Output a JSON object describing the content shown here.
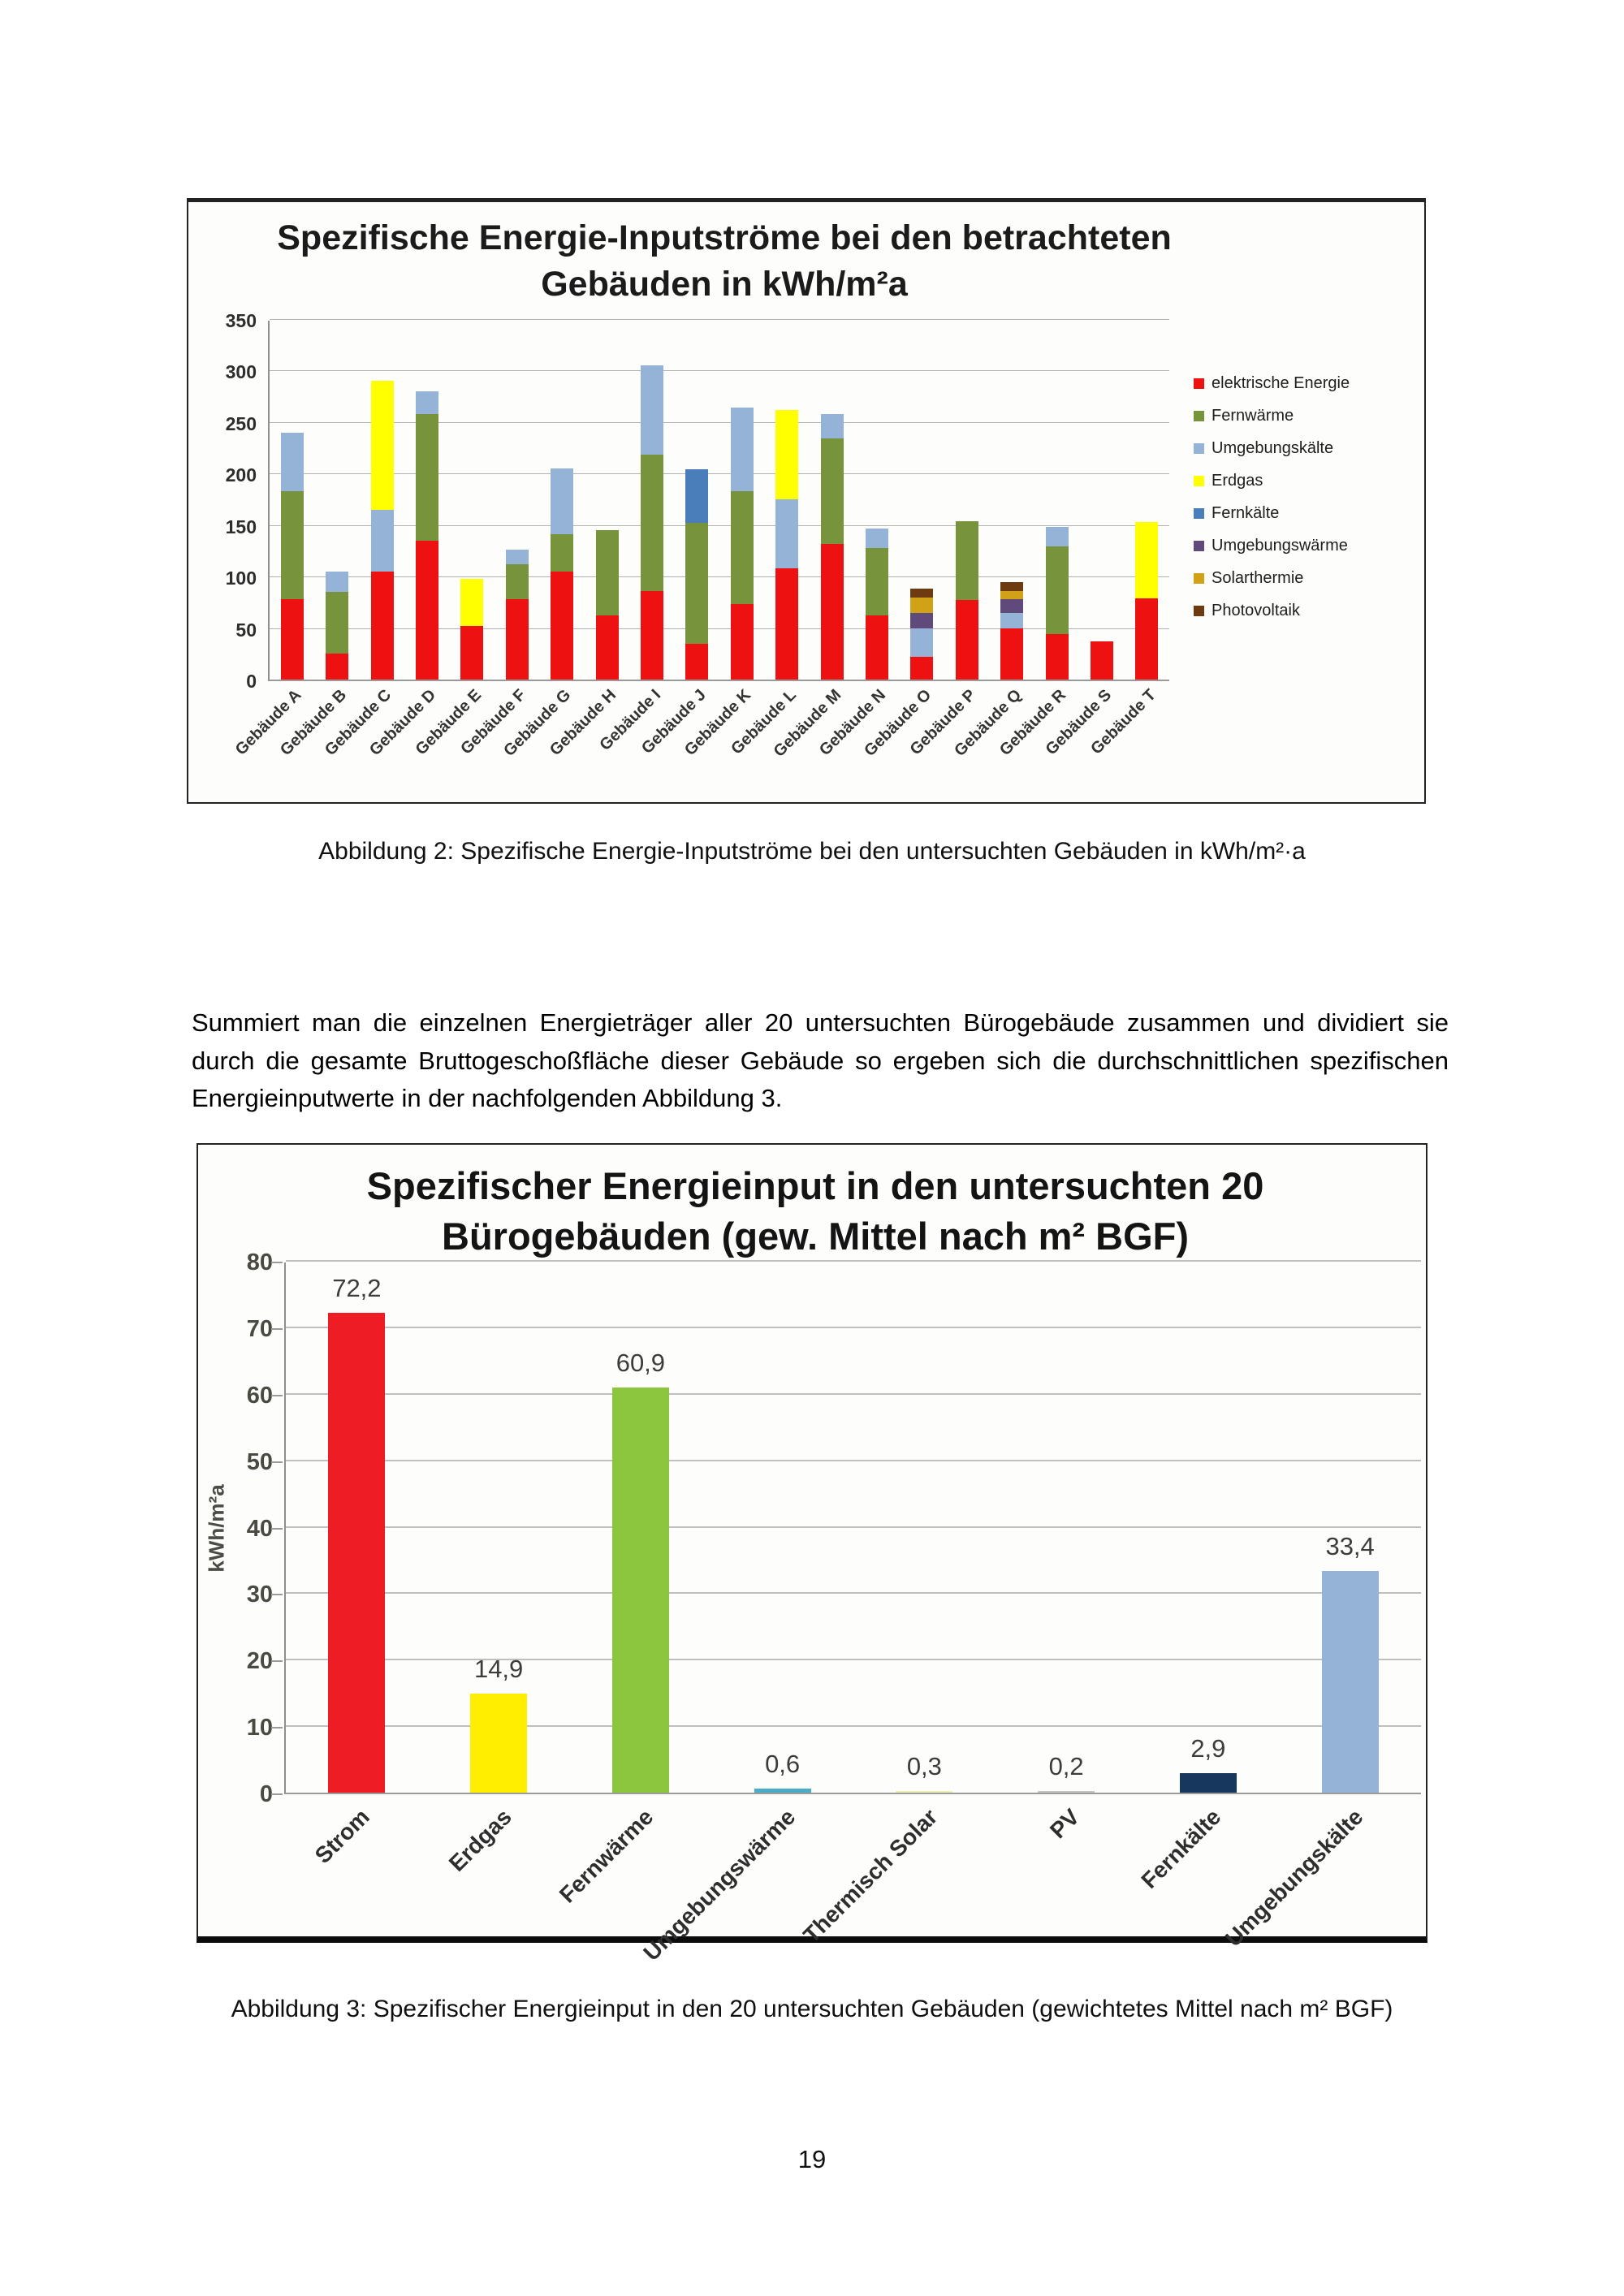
{
  "page": {
    "number": "19",
    "paragraph": "Summiert man die einzelnen Energieträger aller 20 untersuchten Bürogebäude zusammen und dividiert sie durch die gesamte Bruttogeschoßfläche dieser Gebäude so ergeben sich die durchschnittlichen spezifischen Energieinputwerte in der nachfolgenden Abbildung 3.",
    "captions": {
      "figure2": "Abbildung 2: Spezifische Energie-Inputströme bei den untersuchten Gebäuden in kWh/m²·a",
      "figure3": "Abbildung 3: Spezifischer Energieinput in den 20 untersuchten Gebäuden (gewichtetes Mittel nach m² BGF)"
    }
  },
  "chart_data": [
    {
      "type": "bar",
      "subtype": "stacked",
      "title": "Spezifische Energie-Inputströme bei den betrachteten Gebäuden in kWh/m²a",
      "title_lines": [
        "Spezifische Energie-Inputströme bei den betrachteten",
        "Gebäuden in kWh/m²a"
      ],
      "ylim": [
        0,
        350
      ],
      "ytick_step": 50,
      "grid": true,
      "legend_position": "right",
      "legend": [
        {
          "label": "elektrische Energie",
          "color": "#ee1111"
        },
        {
          "label": "Fernwärme",
          "color": "#77933c"
        },
        {
          "label": "Umgebungskälte",
          "color": "#95b3d7"
        },
        {
          "label": "Erdgas",
          "color": "#ffff00"
        },
        {
          "label": "Fernkälte",
          "color": "#4a7ebb"
        },
        {
          "label": "Umgebungswärme",
          "color": "#604a7b"
        },
        {
          "label": "Solarthermie",
          "color": "#d1a117"
        },
        {
          "label": "Photovoltaik",
          "color": "#6e3b10"
        }
      ],
      "bars": [
        {
          "category": "Gebäude A",
          "segments": [
            {
              "series": "elektrische Energie",
              "value": 78
            },
            {
              "series": "Fernwärme",
              "value": 105
            },
            {
              "series": "Umgebungskälte",
              "value": 57
            }
          ]
        },
        {
          "category": "Gebäude B",
          "segments": [
            {
              "series": "elektrische Energie",
              "value": 25
            },
            {
              "series": "Fernwärme",
              "value": 60
            },
            {
              "series": "Umgebungskälte",
              "value": 20
            }
          ]
        },
        {
          "category": "Gebäude C",
          "segments": [
            {
              "series": "elektrische Energie",
              "value": 105
            },
            {
              "series": "Umgebungskälte",
              "value": 60
            },
            {
              "series": "Erdgas",
              "value": 125
            }
          ]
        },
        {
          "category": "Gebäude D",
          "segments": [
            {
              "series": "elektrische Energie",
              "value": 135
            },
            {
              "series": "Fernwärme",
              "value": 123
            },
            {
              "series": "Umgebungskälte",
              "value": 22
            }
          ]
        },
        {
          "category": "Gebäude E",
          "segments": [
            {
              "series": "elektrische Energie",
              "value": 52
            },
            {
              "series": "Erdgas",
              "value": 46
            }
          ]
        },
        {
          "category": "Gebäude F",
          "segments": [
            {
              "series": "elektrische Energie",
              "value": 78
            },
            {
              "series": "Fernwärme",
              "value": 34
            },
            {
              "series": "Umgebungskälte",
              "value": 14
            }
          ]
        },
        {
          "category": "Gebäude G",
          "segments": [
            {
              "series": "elektrische Energie",
              "value": 105
            },
            {
              "series": "Fernwärme",
              "value": 36
            },
            {
              "series": "Umgebungskälte",
              "value": 64
            }
          ]
        },
        {
          "category": "Gebäude H",
          "segments": [
            {
              "series": "elektrische Energie",
              "value": 62
            },
            {
              "series": "Fernwärme",
              "value": 83
            }
          ]
        },
        {
          "category": "Gebäude I",
          "segments": [
            {
              "series": "elektrische Energie",
              "value": 86
            },
            {
              "series": "Fernwärme",
              "value": 132
            },
            {
              "series": "Umgebungskälte",
              "value": 87
            }
          ]
        },
        {
          "category": "Gebäude J",
          "segments": [
            {
              "series": "elektrische Energie",
              "value": 35
            },
            {
              "series": "Fernwärme",
              "value": 117
            },
            {
              "series": "Fernkälte",
              "value": 52
            }
          ]
        },
        {
          "category": "Gebäude K",
          "segments": [
            {
              "series": "elektrische Energie",
              "value": 73
            },
            {
              "series": "Fernwärme",
              "value": 110
            },
            {
              "series": "Umgebungskälte",
              "value": 81
            }
          ]
        },
        {
          "category": "Gebäude L",
          "segments": [
            {
              "series": "elektrische Energie",
              "value": 108
            },
            {
              "series": "Umgebungskälte",
              "value": 67
            },
            {
              "series": "Erdgas",
              "value": 87
            }
          ]
        },
        {
          "category": "Gebäude M",
          "segments": [
            {
              "series": "elektrische Energie",
              "value": 132
            },
            {
              "series": "Fernwärme",
              "value": 102
            },
            {
              "series": "Umgebungskälte",
              "value": 24
            }
          ]
        },
        {
          "category": "Gebäude N",
          "segments": [
            {
              "series": "elektrische Energie",
              "value": 62
            },
            {
              "series": "Fernwärme",
              "value": 66
            },
            {
              "series": "Umgebungskälte",
              "value": 19
            }
          ]
        },
        {
          "category": "Gebäude O",
          "segments": [
            {
              "series": "elektrische Energie",
              "value": 22
            },
            {
              "series": "Umgebungskälte",
              "value": 28
            },
            {
              "series": "Umgebungswärme",
              "value": 15
            },
            {
              "series": "Solarthermie",
              "value": 15
            },
            {
              "series": "Photovoltaik",
              "value": 8
            }
          ]
        },
        {
          "category": "Gebäude P",
          "segments": [
            {
              "series": "elektrische Energie",
              "value": 77
            },
            {
              "series": "Fernwärme",
              "value": 77
            }
          ]
        },
        {
          "category": "Gebäude Q",
          "segments": [
            {
              "series": "elektrische Energie",
              "value": 50
            },
            {
              "series": "Umgebungskälte",
              "value": 15
            },
            {
              "series": "Umgebungswärme",
              "value": 13
            },
            {
              "series": "Solarthermie",
              "value": 8
            },
            {
              "series": "Photovoltaik",
              "value": 9
            }
          ]
        },
        {
          "category": "Gebäude R",
          "segments": [
            {
              "series": "elektrische Energie",
              "value": 44
            },
            {
              "series": "Fernwärme",
              "value": 85
            },
            {
              "series": "Umgebungskälte",
              "value": 19
            }
          ]
        },
        {
          "category": "Gebäude S",
          "segments": [
            {
              "series": "elektrische Energie",
              "value": 37
            }
          ]
        },
        {
          "category": "Gebäude T",
          "segments": [
            {
              "series": "elektrische Energie",
              "value": 79
            },
            {
              "series": "Erdgas",
              "value": 74
            }
          ]
        }
      ]
    },
    {
      "type": "bar",
      "title": "Spezifischer Energieinput in den untersuchten 20 Bürogebäuden (gew. Mittel nach m² BGF)",
      "title_lines": [
        "Spezifischer Energieinput in den untersuchten 20",
        "Bürogebäuden (gew. Mittel nach m² BGF)"
      ],
      "ylabel": "kWh/m²a",
      "ylim": [
        0,
        80
      ],
      "ytick_step": 10,
      "grid": true,
      "categories": [
        "Strom",
        "Erdgas",
        "Fernwärme",
        "Umgebungswärme",
        "Thermisch Solar",
        "PV",
        "Fernkälte",
        "Umgebungskälte"
      ],
      "values": [
        72.2,
        14.9,
        60.9,
        0.6,
        0.3,
        0.2,
        2.9,
        33.4
      ],
      "value_labels": [
        "72,2",
        "14,9",
        "60,9",
        "0,6",
        "0,3",
        "0,2",
        "2,9",
        "33,4"
      ],
      "bar_colors": [
        "#ee1c25",
        "#ffee00",
        "#8cc63e",
        "#4bacc6",
        "#eef0b8",
        "#c6c6c6",
        "#17375e",
        "#95b3d7"
      ]
    }
  ]
}
